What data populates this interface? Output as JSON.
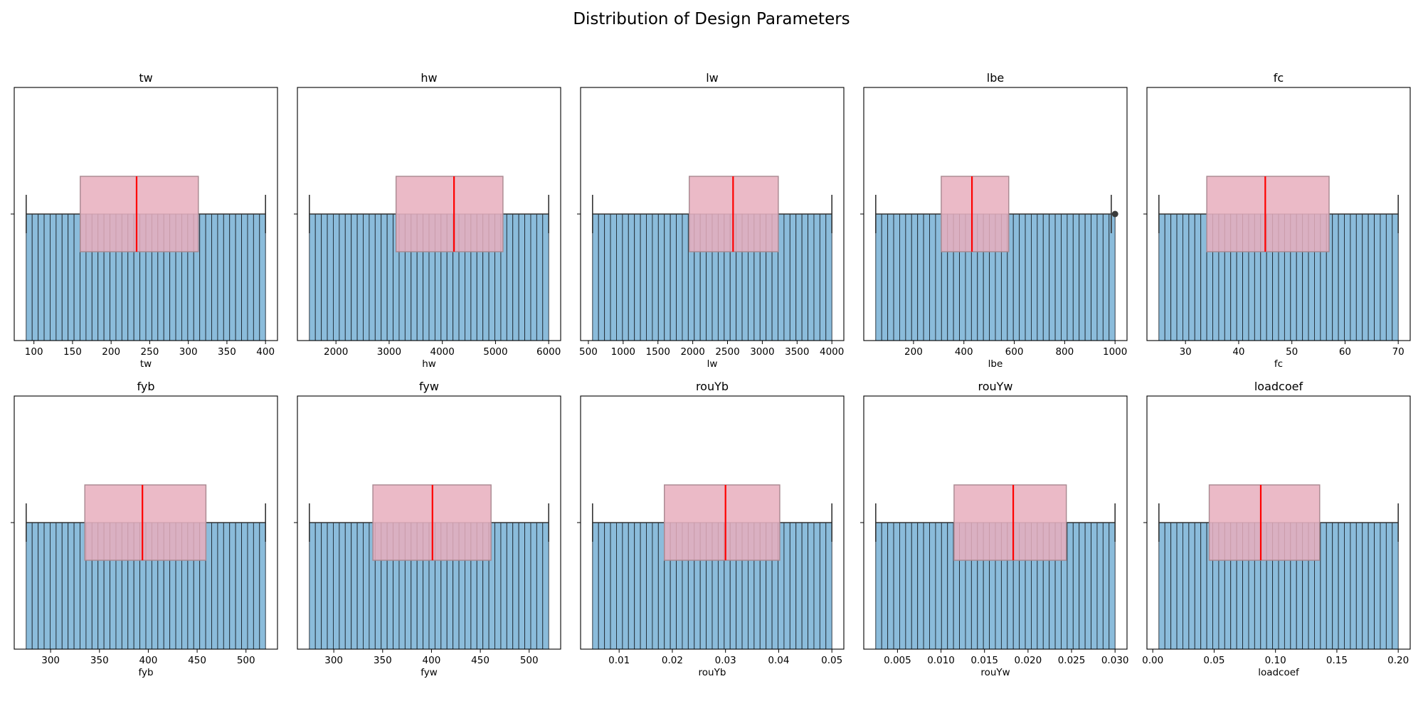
{
  "figure": {
    "title": "Distribution of Design Parameters"
  },
  "style": {
    "hist_fill": "#8bbcdb",
    "hist_edge": "#1f2a33",
    "box_fill": "#e8aebd",
    "box_edge": "#a88890",
    "median": "#ff0000",
    "whisker": "#333333"
  },
  "chart_data": [
    {
      "type": "histogram+box",
      "title": "tw",
      "xlabel": "tw",
      "bin_count": 40,
      "range": [
        90,
        400
      ],
      "box": {
        "whislo": 90,
        "q1": 160,
        "med": 233,
        "q3": 313,
        "whishi": 400,
        "fliers": []
      },
      "xticks": [
        100,
        150,
        200,
        250,
        300,
        350,
        400
      ],
      "tick_labels": [
        "100",
        "150",
        "200",
        "250",
        "300",
        "350",
        "400"
      ]
    },
    {
      "type": "histogram+box",
      "title": "hw",
      "xlabel": "hw",
      "bin_count": 40,
      "range": [
        1500,
        6000
      ],
      "box": {
        "whislo": 1500,
        "q1": 3130,
        "med": 4220,
        "q3": 5140,
        "whishi": 6000,
        "fliers": []
      },
      "xticks": [
        2000,
        3000,
        4000,
        5000,
        6000
      ],
      "tick_labels": [
        "2000",
        "3000",
        "4000",
        "5000",
        "6000"
      ]
    },
    {
      "type": "histogram+box",
      "title": "lw",
      "xlabel": "lw",
      "bin_count": 40,
      "range": [
        560,
        4000
      ],
      "box": {
        "whislo": 560,
        "q1": 1950,
        "med": 2580,
        "q3": 3230,
        "whishi": 4000,
        "fliers": []
      },
      "xticks": [
        500,
        1000,
        1500,
        2000,
        2500,
        3000,
        3500,
        4000
      ],
      "tick_labels": [
        "500",
        "1000",
        "1500",
        "2000",
        "2500",
        "3000",
        "3500",
        "4000"
      ]
    },
    {
      "type": "histogram+box",
      "title": "lbe",
      "xlabel": "lbe",
      "bin_count": 40,
      "range": [
        50,
        1000
      ],
      "box": {
        "whislo": 50,
        "q1": 310,
        "med": 432,
        "q3": 578,
        "whishi": 985,
        "fliers": [
          1000
        ]
      },
      "xticks": [
        200,
        400,
        600,
        800,
        1000
      ],
      "tick_labels": [
        "200",
        "400",
        "600",
        "800",
        "1000"
      ]
    },
    {
      "type": "histogram+box",
      "title": "fc",
      "xlabel": "fc",
      "bin_count": 40,
      "range": [
        25,
        70
      ],
      "box": {
        "whislo": 25,
        "q1": 34,
        "med": 45,
        "q3": 57,
        "whishi": 70,
        "fliers": []
      },
      "xticks": [
        30,
        40,
        50,
        60,
        70
      ],
      "tick_labels": [
        "30",
        "40",
        "50",
        "60",
        "70"
      ]
    },
    {
      "type": "histogram+box",
      "title": "fyb",
      "xlabel": "fyb",
      "bin_count": 40,
      "range": [
        275,
        520
      ],
      "box": {
        "whislo": 275,
        "q1": 335,
        "med": 394,
        "q3": 459,
        "whishi": 520,
        "fliers": []
      },
      "xticks": [
        300,
        350,
        400,
        450,
        500
      ],
      "tick_labels": [
        "300",
        "350",
        "400",
        "450",
        "500"
      ]
    },
    {
      "type": "histogram+box",
      "title": "fyw",
      "xlabel": "fyw",
      "bin_count": 40,
      "range": [
        275,
        520
      ],
      "box": {
        "whislo": 275,
        "q1": 340,
        "med": 401,
        "q3": 461,
        "whishi": 520,
        "fliers": []
      },
      "xticks": [
        300,
        350,
        400,
        450,
        500
      ],
      "tick_labels": [
        "300",
        "350",
        "400",
        "450",
        "500"
      ]
    },
    {
      "type": "histogram+box",
      "title": "rouYb",
      "xlabel": "rouYb",
      "bin_count": 40,
      "range": [
        0.005,
        0.05
      ],
      "box": {
        "whislo": 0.005,
        "q1": 0.0185,
        "med": 0.03,
        "q3": 0.0402,
        "whishi": 0.05,
        "fliers": []
      },
      "xticks": [
        0.01,
        0.02,
        0.03,
        0.04,
        0.05
      ],
      "tick_labels": [
        "0.01",
        "0.02",
        "0.03",
        "0.04",
        "0.05"
      ]
    },
    {
      "type": "histogram+box",
      "title": "rouYw",
      "xlabel": "rouYw",
      "bin_count": 40,
      "range": [
        0.0025,
        0.03
      ],
      "box": {
        "whislo": 0.0025,
        "q1": 0.0115,
        "med": 0.0183,
        "q3": 0.0244,
        "whishi": 0.03,
        "fliers": []
      },
      "xticks": [
        0.005,
        0.01,
        0.015,
        0.02,
        0.025,
        0.03
      ],
      "tick_labels": [
        "0.005",
        "0.010",
        "0.015",
        "0.020",
        "0.025",
        "0.030"
      ]
    },
    {
      "type": "histogram+box",
      "title": "loadcoef",
      "xlabel": "loadcoef",
      "bin_count": 40,
      "range": [
        0.005,
        0.2
      ],
      "box": {
        "whislo": 0.005,
        "q1": 0.046,
        "med": 0.088,
        "q3": 0.136,
        "whishi": 0.2,
        "fliers": []
      },
      "xticks": [
        0,
        0.05,
        0.1,
        0.15,
        0.2
      ],
      "tick_labels": [
        "0.00",
        "0.05",
        "0.10",
        "0.15",
        "0.20"
      ]
    }
  ]
}
